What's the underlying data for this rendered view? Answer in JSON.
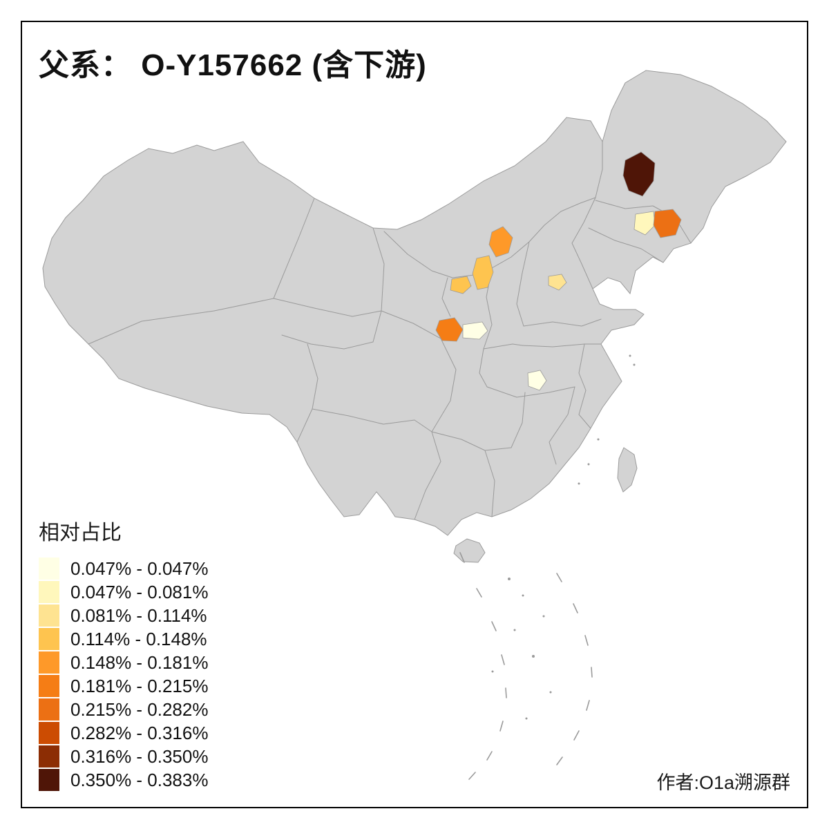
{
  "title": "父系： O-Y157662 (含下游)",
  "credit": "作者:O1a溯源群",
  "legend": {
    "title": "相对占比",
    "items": [
      {
        "label": "0.047% - 0.047%",
        "color": "#FFFFE5"
      },
      {
        "label": "0.047% - 0.081%",
        "color": "#FFF7BC"
      },
      {
        "label": "0.081% - 0.114%",
        "color": "#FEE391"
      },
      {
        "label": "0.114% - 0.148%",
        "color": "#FEC44F"
      },
      {
        "label": "0.148% - 0.181%",
        "color": "#FE9929"
      },
      {
        "label": "0.181% - 0.215%",
        "color": "#F57D15"
      },
      {
        "label": "0.215% - 0.282%",
        "color": "#EC7014"
      },
      {
        "label": "0.282% - 0.316%",
        "color": "#CC4C02"
      },
      {
        "label": "0.316% - 0.350%",
        "color": "#8C2D04"
      },
      {
        "label": "0.350% - 0.383%",
        "color": "#4F1507"
      }
    ]
  },
  "map": {
    "land_fill": "#d3d3d3",
    "boundary_color": "#9a9a9a",
    "background": "#ffffff",
    "frame_color": "#000000",
    "regions": [
      {
        "name": "heilongjiang-central",
        "class": "0.350% - 0.383%",
        "color": "#4F1507"
      },
      {
        "name": "jilin-east",
        "class": "0.215% - 0.282%",
        "color": "#EC7014"
      },
      {
        "name": "jilin-west",
        "class": "0.047% - 0.081%",
        "color": "#FFF7BC"
      },
      {
        "name": "inner-mongolia-south",
        "class": "0.148% - 0.181%",
        "color": "#FE9929"
      },
      {
        "name": "shanxi-west",
        "class": "0.114% - 0.148%",
        "color": "#FEC44F"
      },
      {
        "name": "shanxi-southwest",
        "class": "0.114% - 0.148%",
        "color": "#FEC44F"
      },
      {
        "name": "shandong-northwest",
        "class": "0.081% - 0.114%",
        "color": "#FEE391"
      },
      {
        "name": "gansu-southeast",
        "class": "0.181% - 0.215%",
        "color": "#F57D15"
      },
      {
        "name": "shaanxi-central",
        "class": "0.047% - 0.047%",
        "color": "#FFFFE5"
      },
      {
        "name": "hubei-northwest",
        "class": "0.047% - 0.047%",
        "color": "#FFFFE5"
      }
    ]
  }
}
